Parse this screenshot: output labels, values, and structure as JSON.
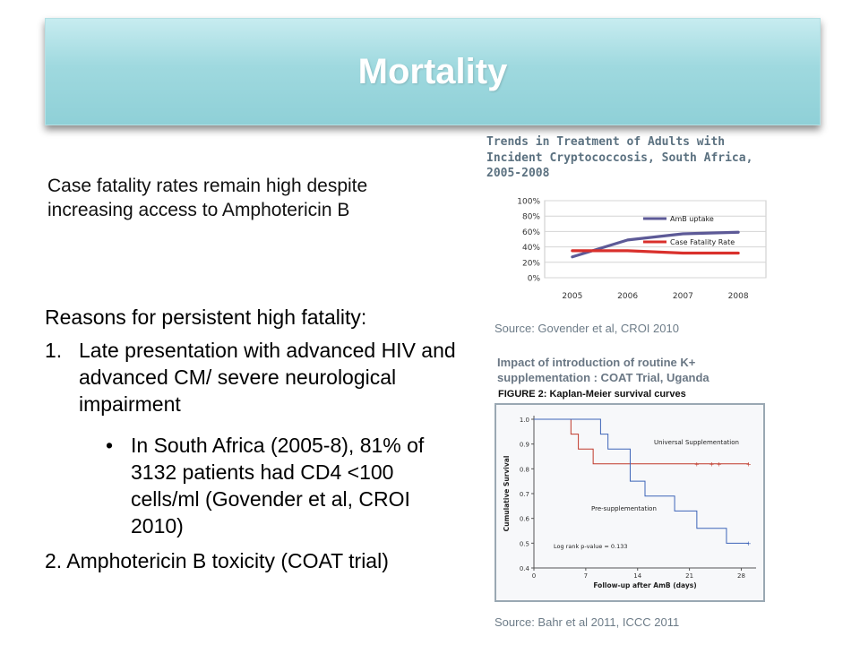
{
  "title": "Mortality",
  "intro": "Case fatality rates remain high despite increasing access to Amphotericin B",
  "reasons": {
    "heading": "Reasons for persistent high fatality:",
    "item1_num": "1.",
    "item1": "Late presentation with advanced HIV and advanced CM/ severe neurological impairment",
    "bullet": "•",
    "sub": "In South Africa (2005-8), 81% of 3132 patients had CD4 <100 cells/ml (Govender et al, CROI 2010)",
    "item2": "2. Amphotericin B toxicity (COAT trial)"
  },
  "chart1_title": "Trends in Treatment of Adults with Incident Cryptococcosis, South Africa, 2005-2008",
  "source1": "Source: Govender et al, CROI 2010",
  "chart2_title": "Impact of introduction of routine K+ supplementation : COAT Trial, Uganda",
  "figure2_label": "FIGURE 2: Kaplan-Meier survival curves",
  "source2": "Source: Bahr et al 2011, ICCC 2011",
  "chart_data": [
    {
      "type": "line",
      "title": "Trends in Treatment of Adults with Incident Cryptococcosis, South Africa, 2005-2008",
      "categories": [
        "2005",
        "2006",
        "2007",
        "2008"
      ],
      "y_tick_labels": [
        "0%",
        "20%",
        "40%",
        "60%",
        "80%",
        "100%"
      ],
      "ylim": [
        0,
        100
      ],
      "grid": true,
      "legend_position": "inside-top-right",
      "series": [
        {
          "name": "AmB uptake",
          "values": [
            27,
            49,
            57,
            59
          ],
          "color": "#5d5a97"
        },
        {
          "name": "Case Fatality Rate",
          "values": [
            35,
            35,
            32,
            32
          ],
          "color": "#d9302c"
        }
      ]
    },
    {
      "type": "line",
      "title": "FIGURE 2: Kaplan-Meier survival curves",
      "xlabel": "Follow-up after AmB (days)",
      "ylabel": "Cumulative Survival",
      "x_ticks": [
        0,
        7,
        14,
        21,
        28
      ],
      "y_ticks": [
        0.4,
        0.5,
        0.6,
        0.7,
        0.8,
        0.9,
        1.0
      ],
      "xlim": [
        0,
        30
      ],
      "ylim": [
        0.4,
        1.0
      ],
      "annotation": "Log rank p-value = 0.133",
      "series": [
        {
          "name": "Universal Supplementation",
          "color": "#c0392b",
          "x": [
            0,
            5,
            5,
            6,
            6,
            8,
            8,
            29
          ],
          "y": [
            1.0,
            1.0,
            0.94,
            0.94,
            0.88,
            0.88,
            0.82,
            0.82
          ]
        },
        {
          "name": "Pre-supplementation",
          "color": "#3d64b8",
          "x": [
            0,
            9,
            9,
            10,
            10,
            13,
            13,
            15,
            15,
            19,
            19,
            22,
            22,
            26,
            26,
            28,
            28,
            29
          ],
          "y": [
            1.0,
            1.0,
            0.94,
            0.94,
            0.88,
            0.88,
            0.75,
            0.75,
            0.69,
            0.69,
            0.63,
            0.63,
            0.56,
            0.56,
            0.5,
            0.5,
            0.5,
            0.5
          ]
        }
      ]
    }
  ]
}
